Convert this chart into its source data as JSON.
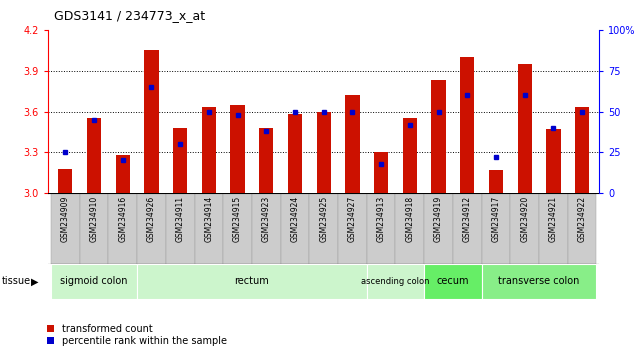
{
  "title": "GDS3141 / 234773_x_at",
  "samples": [
    "GSM234909",
    "GSM234910",
    "GSM234916",
    "GSM234926",
    "GSM234911",
    "GSM234914",
    "GSM234915",
    "GSM234923",
    "GSM234924",
    "GSM234925",
    "GSM234927",
    "GSM234913",
    "GSM234918",
    "GSM234919",
    "GSM234912",
    "GSM234917",
    "GSM234920",
    "GSM234921",
    "GSM234922"
  ],
  "red_values": [
    3.18,
    3.55,
    3.28,
    4.05,
    3.48,
    3.63,
    3.65,
    3.48,
    3.58,
    3.6,
    3.72,
    3.3,
    3.55,
    3.83,
    4.0,
    3.17,
    3.95,
    3.47,
    3.63
  ],
  "blue_values": [
    25,
    45,
    20,
    65,
    30,
    50,
    48,
    38,
    50,
    50,
    50,
    18,
    42,
    50,
    60,
    22,
    60,
    40,
    50
  ],
  "ylim_left": [
    3.0,
    4.2
  ],
  "ylim_right": [
    0,
    100
  ],
  "yticks_left": [
    3.0,
    3.3,
    3.6,
    3.9,
    4.2
  ],
  "yticks_right": [
    0,
    25,
    50,
    75,
    100
  ],
  "grid_lines": [
    3.3,
    3.6,
    3.9
  ],
  "tissue_groups": [
    {
      "label": "sigmoid colon",
      "start": 0,
      "end": 3,
      "color": "#ccf5cc"
    },
    {
      "label": "rectum",
      "start": 3,
      "end": 11,
      "color": "#ccf5cc"
    },
    {
      "label": "ascending colon",
      "start": 11,
      "end": 13,
      "color": "#ccf5cc"
    },
    {
      "label": "cecum",
      "start": 13,
      "end": 15,
      "color": "#66ee66"
    },
    {
      "label": "transverse colon",
      "start": 15,
      "end": 19,
      "color": "#88ee88"
    }
  ],
  "bar_color": "#cc1100",
  "dot_color": "#0000cc",
  "bar_width": 0.5,
  "title_fontsize": 9,
  "cell_color_even": "#d0d0d0",
  "cell_color_odd": "#c4c4c4",
  "cell_border_color": "#aaaaaa"
}
